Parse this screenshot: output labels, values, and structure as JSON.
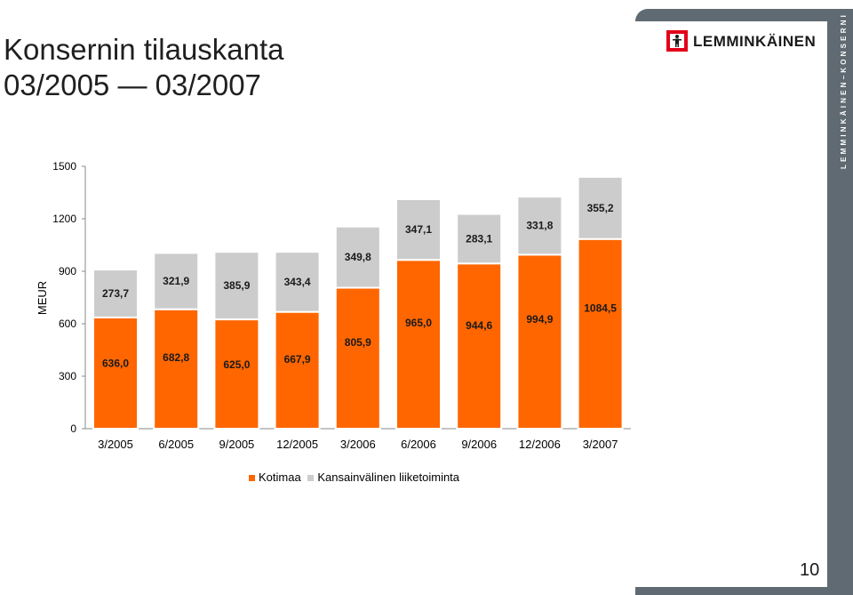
{
  "header": {
    "title_line1": "Konsernin tilauskanta",
    "title_line2": "03/2005 — 03/2007"
  },
  "brand": {
    "logo_text": "LEMMINKÄINEN",
    "side_text": "LEMMINKÄINEN–KONSERNI",
    "logo_icon": "worker-figure-icon",
    "red": "#e2001a",
    "frame": "#5f6a72"
  },
  "page": {
    "number": "10"
  },
  "chart_data": {
    "type": "bar",
    "stacked": true,
    "title": "",
    "xlabel": "",
    "ylabel": "MEUR",
    "ylim": [
      0,
      1500
    ],
    "yticks": [
      "0",
      "300",
      "600",
      "900",
      "1200",
      "1500"
    ],
    "categories": [
      "3/2005",
      "6/2005",
      "9/2005",
      "12/2005",
      "3/2006",
      "6/2006",
      "9/2006",
      "12/2006",
      "3/2007"
    ],
    "series": [
      {
        "name": "Kotimaa",
        "color": "#ff6600",
        "values": [
          636.0,
          682.8,
          625.0,
          667.9,
          805.9,
          965.0,
          944.6,
          994.9,
          1084.5
        ],
        "labels": [
          "636,0",
          "682,8",
          "625,0",
          "667,9",
          "805,9",
          "965,0",
          "944,6",
          "994,9",
          "1084,5"
        ]
      },
      {
        "name": "Kansainvälinen liiketoiminta",
        "color": "#cccccc",
        "values": [
          273.7,
          321.9,
          385.9,
          343.4,
          349.8,
          347.1,
          283.1,
          331.8,
          355.2
        ],
        "labels": [
          "273,7",
          "321,9",
          "385,9",
          "343,4",
          "349,8",
          "347,1",
          "283,1",
          "331,8",
          "355,2"
        ]
      }
    ],
    "grid": false,
    "legend": "bottom"
  }
}
